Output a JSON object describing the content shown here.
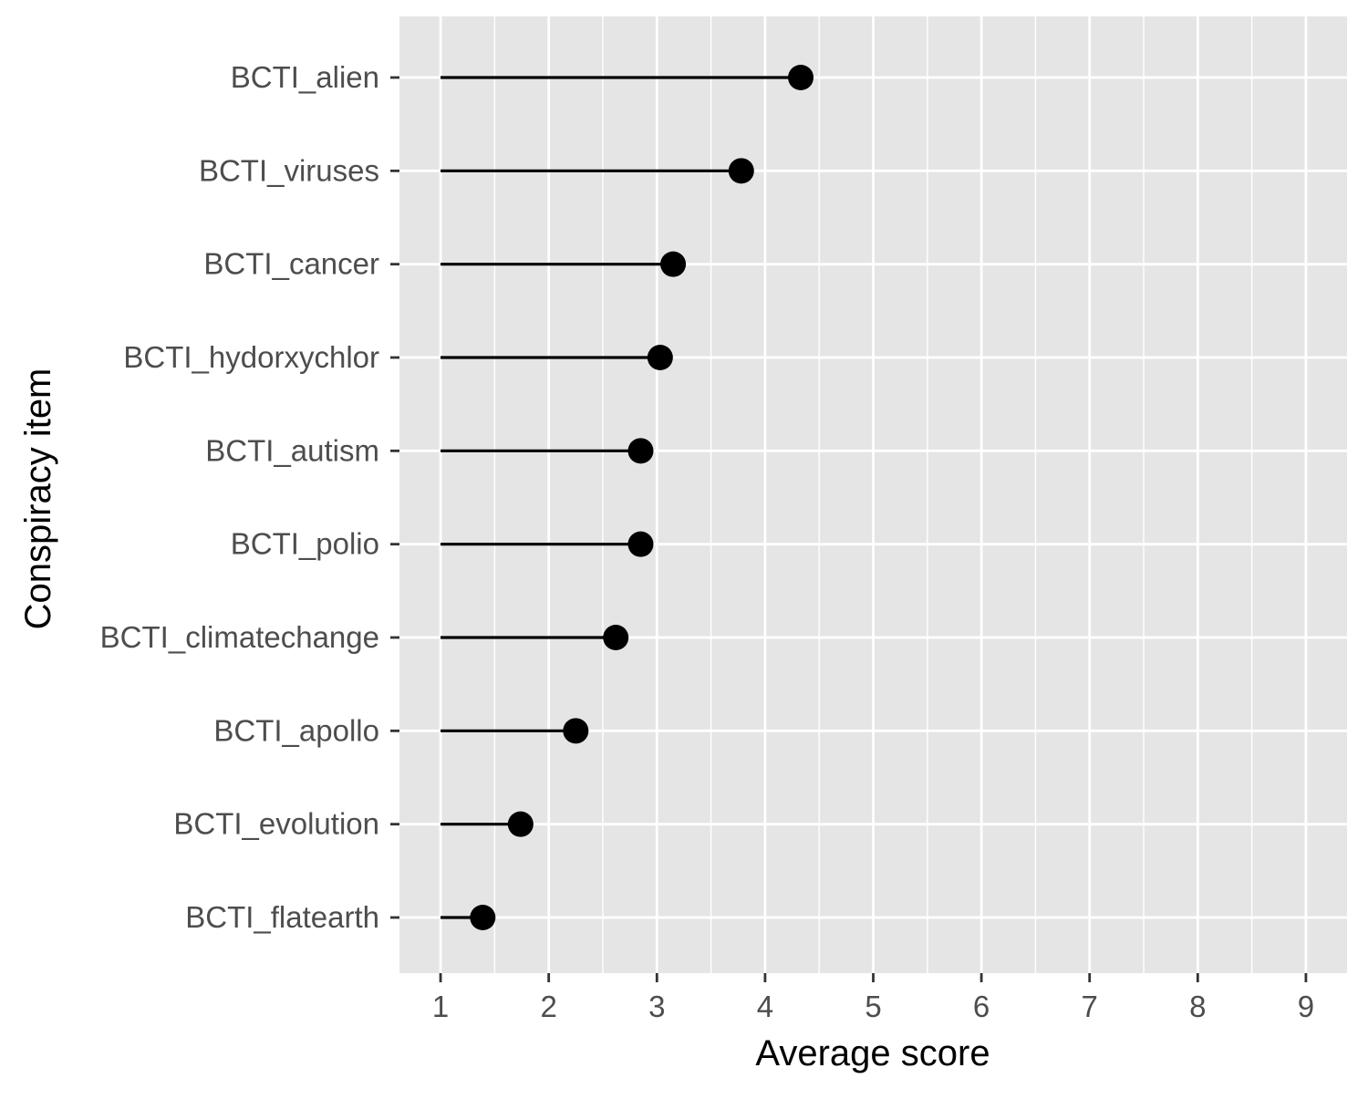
{
  "chart_data": {
    "type": "lollipop",
    "xlabel": "Average score",
    "ylabel": "Conspiracy item",
    "xlim": [
      0.62,
      9.38
    ],
    "x_ticks": [
      1,
      2,
      3,
      4,
      5,
      6,
      7,
      8,
      9
    ],
    "x_tick_labels": [
      "1",
      "2",
      "3",
      "4",
      "5",
      "6",
      "7",
      "8",
      "9"
    ],
    "baseline": 1,
    "grid": true,
    "panel_background": "#e5e5e5",
    "grid_color": "#ffffff",
    "mark_color": "#000000",
    "categories": [
      "BCTI_alien",
      "BCTI_viruses",
      "BCTI_cancer",
      "BCTI_hydorxychlor",
      "BCTI_autism",
      "BCTI_polio",
      "BCTI_climatechange",
      "BCTI_apollo",
      "BCTI_evolution",
      "BCTI_flatearth"
    ],
    "values": [
      4.33,
      3.78,
      3.15,
      3.03,
      2.85,
      2.85,
      2.62,
      2.25,
      1.74,
      1.39
    ]
  }
}
